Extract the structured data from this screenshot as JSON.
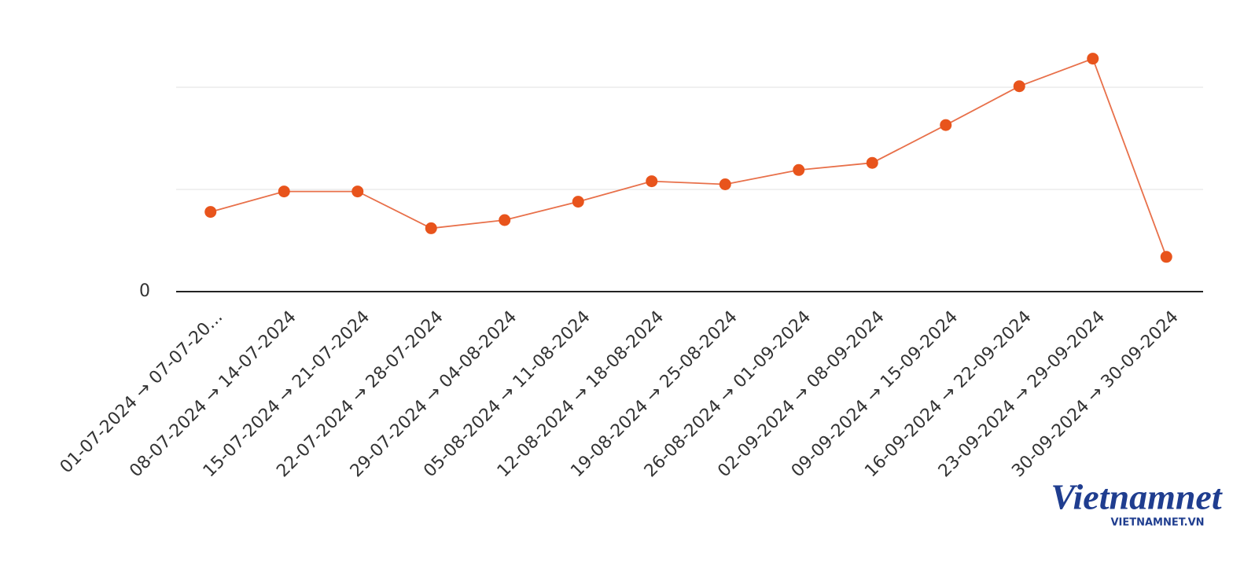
{
  "chart_data": {
    "type": "line",
    "categories": [
      "01-07-2024 → 07-07-20...",
      "08-07-2024 → 14-07-2024",
      "15-07-2024 → 21-07-2024",
      "22-07-2024 → 28-07-2024",
      "29-07-2024 → 04-08-2024",
      "05-08-2024 → 11-08-2024",
      "12-08-2024 → 18-08-2024",
      "19-08-2024 → 25-08-2024",
      "26-08-2024 → 01-09-2024",
      "02-09-2024 → 08-09-2024",
      "09-09-2024 → 15-09-2024",
      "16-09-2024 → 22-09-2024",
      "23-09-2024 → 29-09-2024",
      "30-09-2024 → 30-09-2024"
    ],
    "values": [
      0.78,
      0.98,
      0.98,
      0.62,
      0.7,
      0.88,
      1.08,
      1.05,
      1.19,
      1.26,
      1.63,
      2.01,
      2.28,
      0.34
    ],
    "color": "#e8541c",
    "ylim": [
      0,
      2.5
    ],
    "yticks": [
      0
    ],
    "gridlines": [
      1,
      2
    ],
    "grid": true
  },
  "watermark": {
    "logo": "Vietnamnet",
    "url": "VIETNAMNET.VN"
  }
}
